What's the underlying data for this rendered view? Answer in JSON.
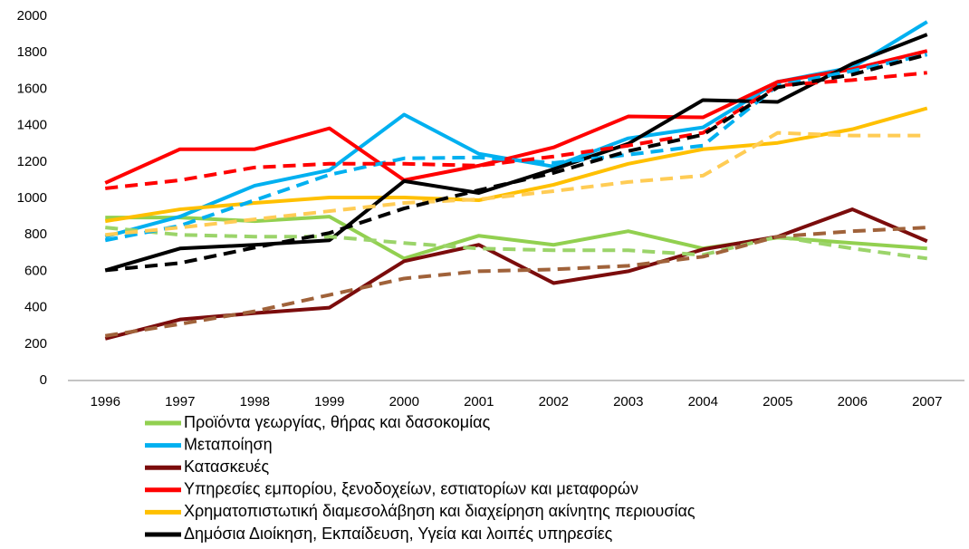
{
  "chart_data": {
    "type": "line",
    "categories": [
      "1996",
      "1997",
      "1998",
      "1999",
      "2000",
      "2001",
      "2002",
      "2003",
      "2004",
      "2005",
      "2006",
      "2007"
    ],
    "ylim": [
      0,
      2000
    ],
    "yticks": [
      0,
      200,
      400,
      600,
      800,
      1000,
      1200,
      1400,
      1600,
      1800,
      2000
    ],
    "grid": false,
    "legend": "bottom",
    "series": [
      {
        "name": "Προϊόντα γεωργίας, θήρας και δασοκομίας",
        "color": "#92d050",
        "values": [
          895,
          895,
          875,
          900,
          670,
          795,
          745,
          820,
          725,
          785,
          755,
          725
        ]
      },
      {
        "name": "Μεταποίηση",
        "color": "#00b0f0",
        "values": [
          790,
          900,
          1070,
          1155,
          1460,
          1245,
          1175,
          1330,
          1390,
          1640,
          1720,
          1970
        ]
      },
      {
        "name": "Κατασκευές",
        "color": "#7b0c0c",
        "values": [
          230,
          335,
          370,
          400,
          655,
          745,
          535,
          600,
          720,
          790,
          940,
          765
        ]
      },
      {
        "name": "Υπηρεσίες εμπορίου, ξενοδοχείων, εστιατορίων και μεταφορών",
        "color": "#ff0000",
        "values": [
          1085,
          1270,
          1270,
          1385,
          1100,
          1180,
          1280,
          1450,
          1445,
          1640,
          1710,
          1810
        ]
      },
      {
        "name": "Χρηματοπιστωτική διαμεσολάβηση και διαχείρηση ακίνητης περιουσίας",
        "color": "#ffc000",
        "values": [
          875,
          940,
          975,
          1005,
          1005,
          990,
          1075,
          1190,
          1270,
          1305,
          1380,
          1495
        ]
      },
      {
        "name": "Δημόσια Διοίκηση, Εκπαίδευση, Υγεία και λοιπές υπηρεσίες",
        "color": "#000000",
        "values": [
          605,
          725,
          745,
          770,
          1095,
          1030,
          1160,
          1300,
          1540,
          1530,
          1740,
          1900
        ]
      },
      {
        "color": "#9bd46a",
        "dash": true,
        "values": [
          840,
          800,
          790,
          790,
          755,
          725,
          715,
          715,
          690,
          790,
          725,
          670
        ]
      },
      {
        "color": "#00b0f0",
        "dash": true,
        "values": [
          770,
          850,
          990,
          1130,
          1220,
          1225,
          1195,
          1240,
          1290,
          1620,
          1700,
          1790
        ]
      },
      {
        "color": "#a0623a",
        "dash": true,
        "values": [
          245,
          310,
          380,
          470,
          560,
          600,
          610,
          630,
          680,
          790,
          820,
          840
        ]
      },
      {
        "color": "#ff0000",
        "dash": true,
        "values": [
          1055,
          1100,
          1170,
          1190,
          1190,
          1180,
          1230,
          1290,
          1360,
          1620,
          1650,
          1690
        ]
      },
      {
        "color": "#ffcc55",
        "dash": true,
        "values": [
          800,
          840,
          885,
          930,
          975,
          995,
          1040,
          1090,
          1125,
          1360,
          1345,
          1345
        ]
      },
      {
        "color": "#000000",
        "dash": true,
        "values": [
          605,
          645,
          730,
          810,
          945,
          1045,
          1140,
          1260,
          1350,
          1610,
          1680,
          1790
        ]
      }
    ]
  }
}
